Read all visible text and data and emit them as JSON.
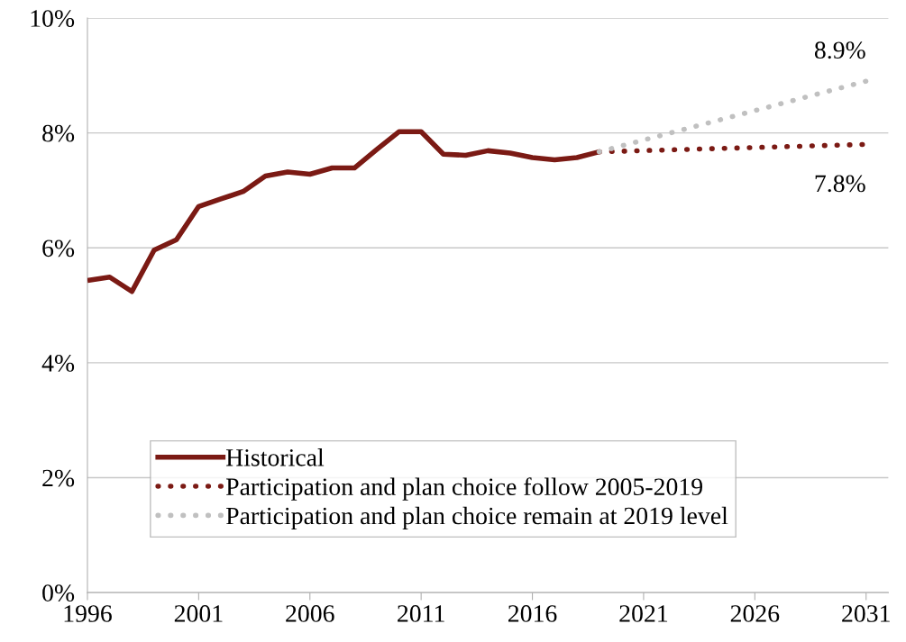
{
  "chart_data": {
    "type": "line",
    "xlim": [
      1996,
      2032
    ],
    "xticks": [
      1996,
      2001,
      2006,
      2011,
      2016,
      2021,
      2026,
      2031
    ],
    "ylim": [
      0,
      10
    ],
    "yticks": [
      {
        "value": 0,
        "label": "0%"
      },
      {
        "value": 2,
        "label": "2%"
      },
      {
        "value": 4,
        "label": "4%"
      },
      {
        "value": 6,
        "label": "6%"
      },
      {
        "value": 8,
        "label": "8%"
      },
      {
        "value": 10,
        "label": "10%"
      }
    ],
    "grid": "y",
    "legend": "bottom left",
    "series": [
      {
        "name": "Historical",
        "color": "#7b1a14",
        "line_style": "solid",
        "x": [
          1996,
          1997,
          1998,
          1999,
          2000,
          2001,
          2002,
          2003,
          2004,
          2005,
          2006,
          2007,
          2008,
          2009,
          2010,
          2011,
          2012,
          2013,
          2014,
          2015,
          2016,
          2017,
          2018,
          2019
        ],
        "values": [
          5.43,
          5.49,
          5.24,
          5.96,
          6.14,
          6.72,
          6.85,
          6.98,
          7.25,
          7.32,
          7.28,
          7.39,
          7.39,
          7.71,
          8.02,
          8.02,
          7.63,
          7.61,
          7.69,
          7.65,
          7.57,
          7.53,
          7.57,
          7.67
        ]
      },
      {
        "name": "Participation and plan choice follow 2005-2019",
        "color": "#7b1a14",
        "line_style": "dotted",
        "x": [
          2019,
          2031
        ],
        "values": [
          7.67,
          7.8
        ]
      },
      {
        "name": "Participation and plan choice remain at 2019 level",
        "color": "#c0c0c0",
        "line_style": "dotted",
        "x": [
          2019,
          2031
        ],
        "values": [
          7.67,
          8.9
        ]
      }
    ],
    "annotations": [
      {
        "text": "8.9%",
        "x": 2031,
        "y": 8.9
      },
      {
        "text": "7.8%",
        "x": 2031,
        "y": 7.8
      }
    ]
  }
}
